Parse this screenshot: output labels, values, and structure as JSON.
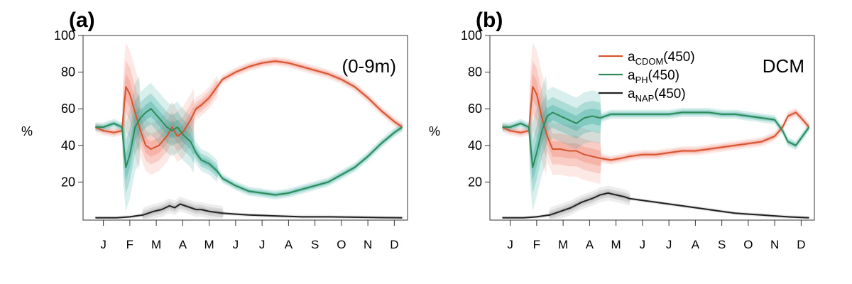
{
  "colors": {
    "cdom": "#d6542e",
    "ph": "#2e8b57",
    "nap": "#222222",
    "ph_band": "#2fa89a",
    "cdom_band": "#f08070",
    "nap_band": "#9a9a9a"
  },
  "chart_data": [
    {
      "type": "line",
      "panel_label": "(a)",
      "annotation": "(0-9m)",
      "ylabel": "%",
      "ylim": [
        0,
        100
      ],
      "yticks": [
        "20",
        "40",
        "60",
        "80",
        "100"
      ],
      "months": [
        "J",
        "F",
        "M",
        "A",
        "M",
        "J",
        "J",
        "A",
        "S",
        "O",
        "N",
        "D"
      ],
      "x_unit": "month",
      "series": [
        {
          "key": "cdom",
          "x": [
            0.2,
            0.5,
            0.9,
            1.2,
            1.35,
            1.5,
            1.7,
            1.9,
            2.1,
            2.3,
            2.6,
            2.9,
            3.1,
            3.3,
            3.5,
            3.8,
            4.0,
            4.2,
            4.5,
            4.8,
            5.0,
            5.5,
            6.0,
            6.5,
            7.0,
            7.5,
            8.0,
            8.5,
            9.0,
            9.5,
            10.0,
            10.5,
            11.0,
            11.5,
            11.8
          ],
          "y": [
            50,
            48,
            47,
            48,
            72,
            68,
            58,
            48,
            40,
            38,
            40,
            45,
            50,
            45,
            47,
            54,
            60,
            62,
            66,
            72,
            76,
            80,
            83,
            85,
            86,
            85,
            83,
            81,
            79,
            76,
            72,
            66,
            59,
            53,
            50
          ]
        },
        {
          "key": "ph",
          "x": [
            0.2,
            0.5,
            0.9,
            1.2,
            1.35,
            1.5,
            1.7,
            1.9,
            2.1,
            2.3,
            2.6,
            2.9,
            3.1,
            3.3,
            3.5,
            3.8,
            4.0,
            4.2,
            4.5,
            4.8,
            5.0,
            5.5,
            6.0,
            6.5,
            7.0,
            7.5,
            8.0,
            8.5,
            9.0,
            9.5,
            10.0,
            10.5,
            11.0,
            11.5,
            11.8
          ],
          "y": [
            50,
            50,
            52,
            50,
            28,
            35,
            50,
            55,
            58,
            60,
            55,
            50,
            48,
            50,
            46,
            42,
            36,
            32,
            30,
            26,
            22,
            18,
            15,
            14,
            13,
            14,
            16,
            18,
            20,
            24,
            28,
            34,
            41,
            47,
            50
          ]
        },
        {
          "key": "nap",
          "x": [
            0.2,
            0.5,
            1.0,
            1.5,
            2.0,
            2.4,
            2.7,
            3.0,
            3.2,
            3.4,
            3.6,
            3.8,
            4.0,
            4.2,
            4.5,
            5.0,
            5.5,
            6.0,
            7.0,
            8.0,
            9.0,
            10.0,
            11.0,
            11.8
          ],
          "y": [
            0.5,
            0.5,
            0.5,
            1,
            2,
            4,
            5,
            7,
            6,
            8,
            7,
            6,
            5,
            5,
            4,
            3,
            2.5,
            2,
            1.5,
            1,
            1,
            0.8,
            0.6,
            0.5
          ]
        }
      ]
    },
    {
      "type": "line",
      "panel_label": "(b)",
      "annotation": "DCM",
      "ylabel": "%",
      "ylim": [
        0,
        100
      ],
      "yticks": [
        "20",
        "40",
        "60",
        "80",
        "100"
      ],
      "months": [
        "J",
        "F",
        "M",
        "A",
        "M",
        "J",
        "J",
        "A",
        "S",
        "O",
        "N",
        "D"
      ],
      "x_unit": "month",
      "legend": {
        "position": "top-center",
        "entries": [
          {
            "key": "cdom",
            "label": "a",
            "sub": "CDOM",
            "suffix": "(450)"
          },
          {
            "key": "ph",
            "label": "a",
            "sub": "PH",
            "suffix": "(450)"
          },
          {
            "key": "nap",
            "label": "a",
            "sub": "NAP",
            "suffix": "(450)"
          }
        ]
      },
      "series": [
        {
          "key": "cdom",
          "x": [
            0.2,
            0.5,
            0.9,
            1.2,
            1.35,
            1.5,
            1.7,
            1.9,
            2.1,
            2.4,
            2.7,
            3.0,
            3.3,
            3.6,
            3.9,
            4.3,
            4.7,
            5.0,
            5.5,
            6.0,
            6.5,
            7.0,
            7.5,
            8.0,
            8.5,
            9.0,
            9.5,
            10.0,
            10.5,
            10.8,
            11.0,
            11.3,
            11.5,
            11.8
          ],
          "y": [
            50,
            48,
            47,
            48,
            72,
            68,
            55,
            45,
            38,
            38,
            37,
            37,
            35,
            34,
            33,
            32,
            33,
            34,
            35,
            35,
            36,
            37,
            37,
            38,
            39,
            40,
            41,
            42,
            45,
            50,
            56,
            58,
            55,
            50
          ]
        },
        {
          "key": "ph",
          "x": [
            0.2,
            0.5,
            0.9,
            1.2,
            1.35,
            1.5,
            1.7,
            1.9,
            2.1,
            2.4,
            2.7,
            3.0,
            3.3,
            3.6,
            3.9,
            4.3,
            4.7,
            5.0,
            5.5,
            6.0,
            6.5,
            7.0,
            7.5,
            8.0,
            8.5,
            9.0,
            9.5,
            10.0,
            10.5,
            10.8,
            11.0,
            11.3,
            11.5,
            11.8
          ],
          "y": [
            50,
            50,
            52,
            50,
            28,
            36,
            48,
            56,
            58,
            56,
            54,
            52,
            55,
            56,
            55,
            57,
            57,
            57,
            57,
            57,
            57,
            58,
            58,
            58,
            57,
            57,
            56,
            55,
            54,
            48,
            42,
            40,
            44,
            50
          ]
        },
        {
          "key": "nap",
          "x": [
            0.2,
            0.5,
            1.0,
            1.5,
            2.0,
            2.4,
            2.8,
            3.2,
            3.6,
            3.9,
            4.2,
            4.5,
            4.8,
            5.0,
            5.5,
            6.0,
            6.5,
            7.0,
            7.5,
            8.0,
            8.5,
            9.0,
            9.5,
            10.0,
            10.5,
            11.0,
            11.5,
            11.8
          ],
          "y": [
            0.5,
            0.5,
            0.5,
            1,
            2,
            4,
            6,
            9,
            11,
            13,
            14,
            13,
            12,
            11,
            10,
            9,
            8,
            7,
            6,
            5,
            4,
            3,
            2.5,
            2,
            1.5,
            1,
            0.7,
            0.5
          ]
        }
      ]
    }
  ]
}
